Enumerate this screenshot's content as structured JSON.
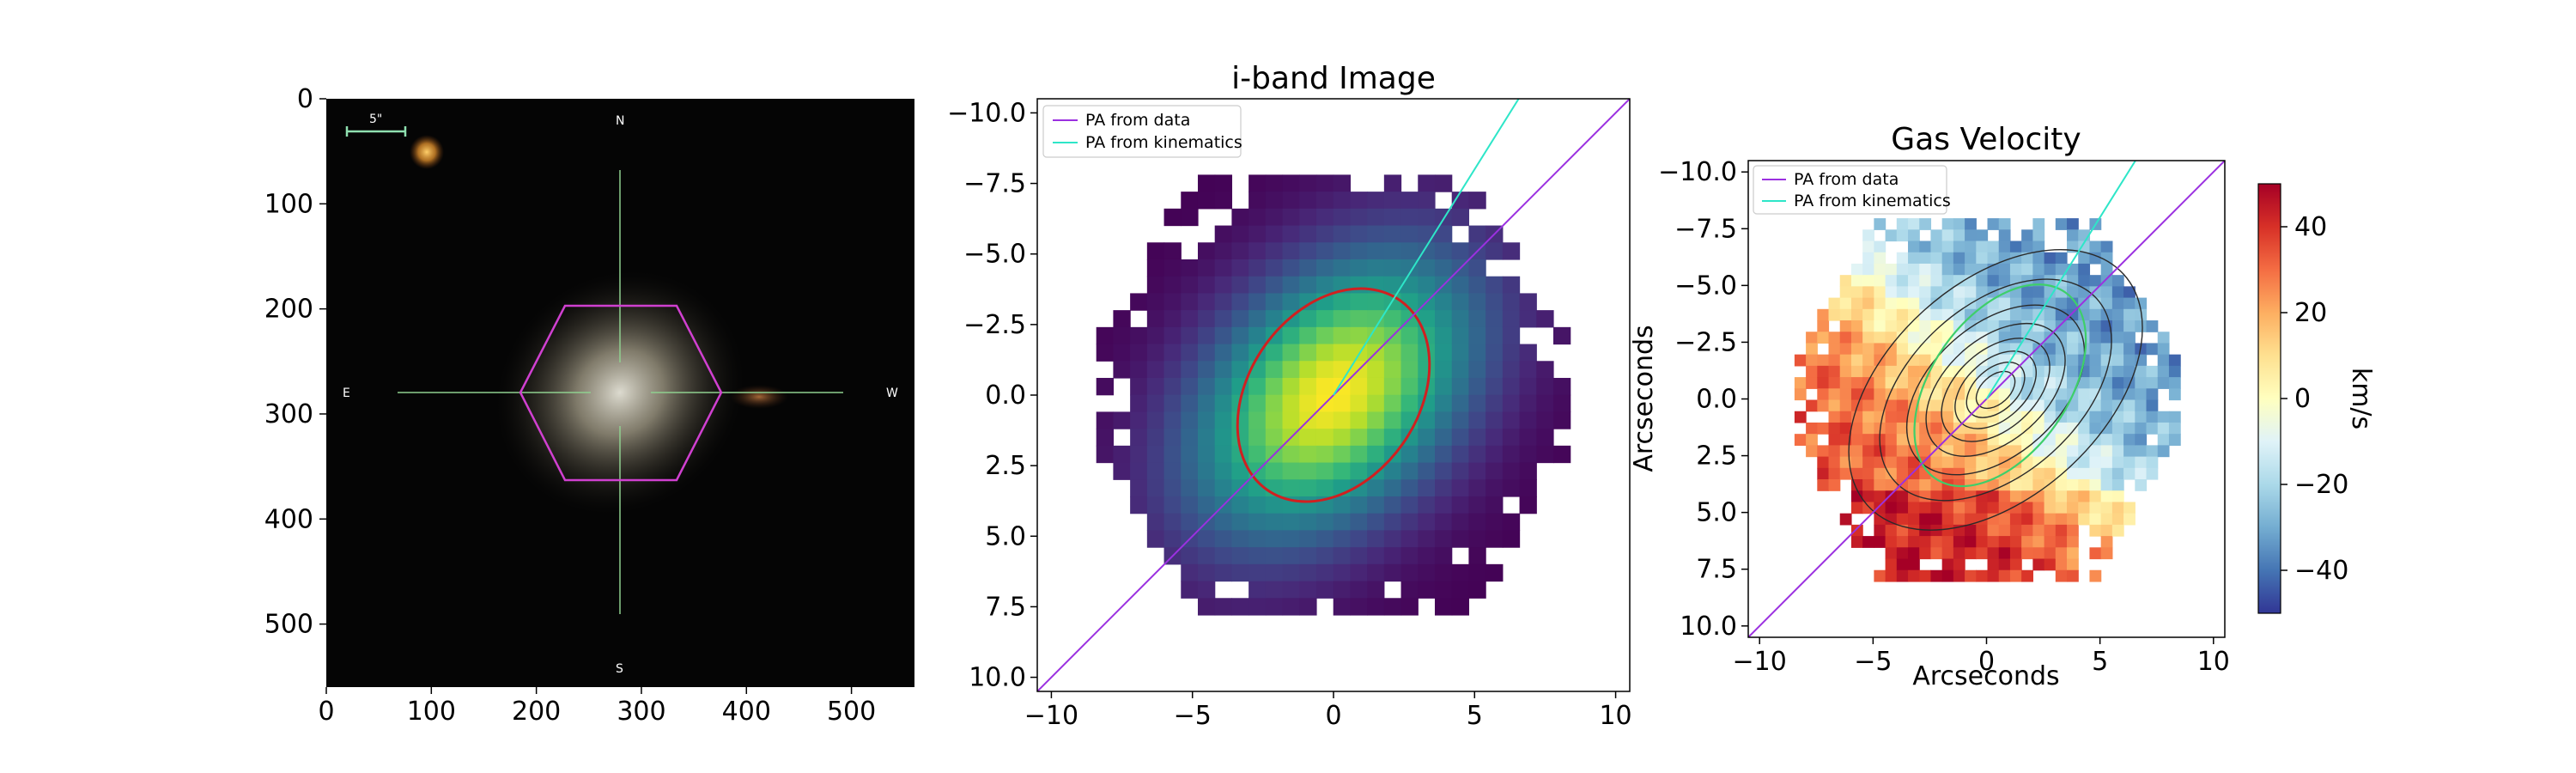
{
  "chart_data": [
    {
      "type": "image",
      "description_source": "optical cutout",
      "x_ticks": [
        "0",
        "100",
        "200",
        "300",
        "400",
        "500"
      ],
      "y_ticks": [
        "0",
        "100",
        "200",
        "300",
        "400",
        "500"
      ],
      "xlim": [
        0,
        560
      ],
      "ylim": [
        560,
        0
      ],
      "compass": {
        "north": "N",
        "south": "S",
        "east": "E",
        "west": "W"
      },
      "scale_bar_label": "5\"",
      "galaxy_center": [
        280,
        280
      ],
      "ifu_hexagon_color": "#d040d0",
      "crosshair_color": "#8fd08f"
    },
    {
      "type": "heatmap",
      "title": "i-band Image",
      "x_ticks": [
        "−10",
        "−5",
        "0",
        "5",
        "10"
      ],
      "y_ticks": [
        "−10.0",
        "−7.5",
        "−5.0",
        "−2.5",
        "0.0",
        "2.5",
        "5.0",
        "7.5",
        "10.0"
      ],
      "xlim": [
        -10.5,
        10.5
      ],
      "ylim": [
        -10.5,
        10.5
      ],
      "colormap": "viridis",
      "series": [
        {
          "name": "PA from data",
          "color": "#9b30e0",
          "slope": 1.0
        },
        {
          "name": "PA from kinematics",
          "color": "#2ee6c8",
          "slope": 1.6
        }
      ],
      "ellipse": {
        "center": [
          0,
          0
        ],
        "semi_major": 4.1,
        "semi_minor": 3.0,
        "angle_deg": -55,
        "color": "#d02020"
      }
    },
    {
      "type": "heatmap",
      "title": "Gas Velocity",
      "xlabel": "Arcseconds",
      "ylabel": "Arcseconds",
      "x_ticks": [
        "−10",
        "−5",
        "0",
        "5",
        "10"
      ],
      "y_ticks": [
        "−10.0",
        "−7.5",
        "−5.0",
        "−2.5",
        "0.0",
        "2.5",
        "5.0",
        "7.5",
        "10.0"
      ],
      "xlim": [
        -10.5,
        10.5
      ],
      "ylim": [
        -10.5,
        10.5
      ],
      "colormap": "RdYlBu_r",
      "series": [
        {
          "name": "PA from data",
          "color": "#9b30e0",
          "slope": 1.0
        },
        {
          "name": "PA from kinematics",
          "color": "#2ee6c8",
          "slope": 1.6
        }
      ],
      "colorbar": {
        "label": "km/s",
        "range": [
          -50,
          50
        ],
        "ticks": [
          "40",
          "20",
          "0",
          "−20",
          "−40"
        ]
      }
    }
  ]
}
